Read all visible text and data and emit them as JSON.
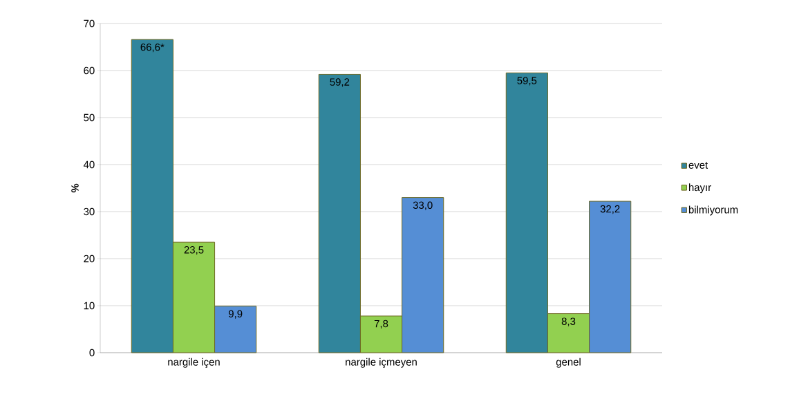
{
  "chart_data": {
    "type": "bar",
    "ylabel": "%",
    "categories": [
      "nargile içen",
      "nargile içmeyen",
      "genel"
    ],
    "series": [
      {
        "name": "evet",
        "color": "#31859c",
        "values": [
          66.6,
          59.2,
          59.5
        ],
        "value_labels": [
          "66,6*",
          "59,2",
          "59,5"
        ]
      },
      {
        "name": "hayır",
        "color": "#92d050",
        "values": [
          23.5,
          7.8,
          8.3
        ],
        "value_labels": [
          "23,5",
          "7,8",
          "8,3"
        ]
      },
      {
        "name": "bilmiyorum",
        "color": "#558ed5",
        "values": [
          9.9,
          33.0,
          32.2
        ],
        "value_labels": [
          "9,9",
          "33,0",
          "32,2"
        ]
      }
    ],
    "ylim": [
      0,
      70
    ],
    "yticks": [
      0,
      10,
      20,
      30,
      40,
      50,
      60,
      70
    ],
    "grid": "y",
    "legend": "right"
  }
}
